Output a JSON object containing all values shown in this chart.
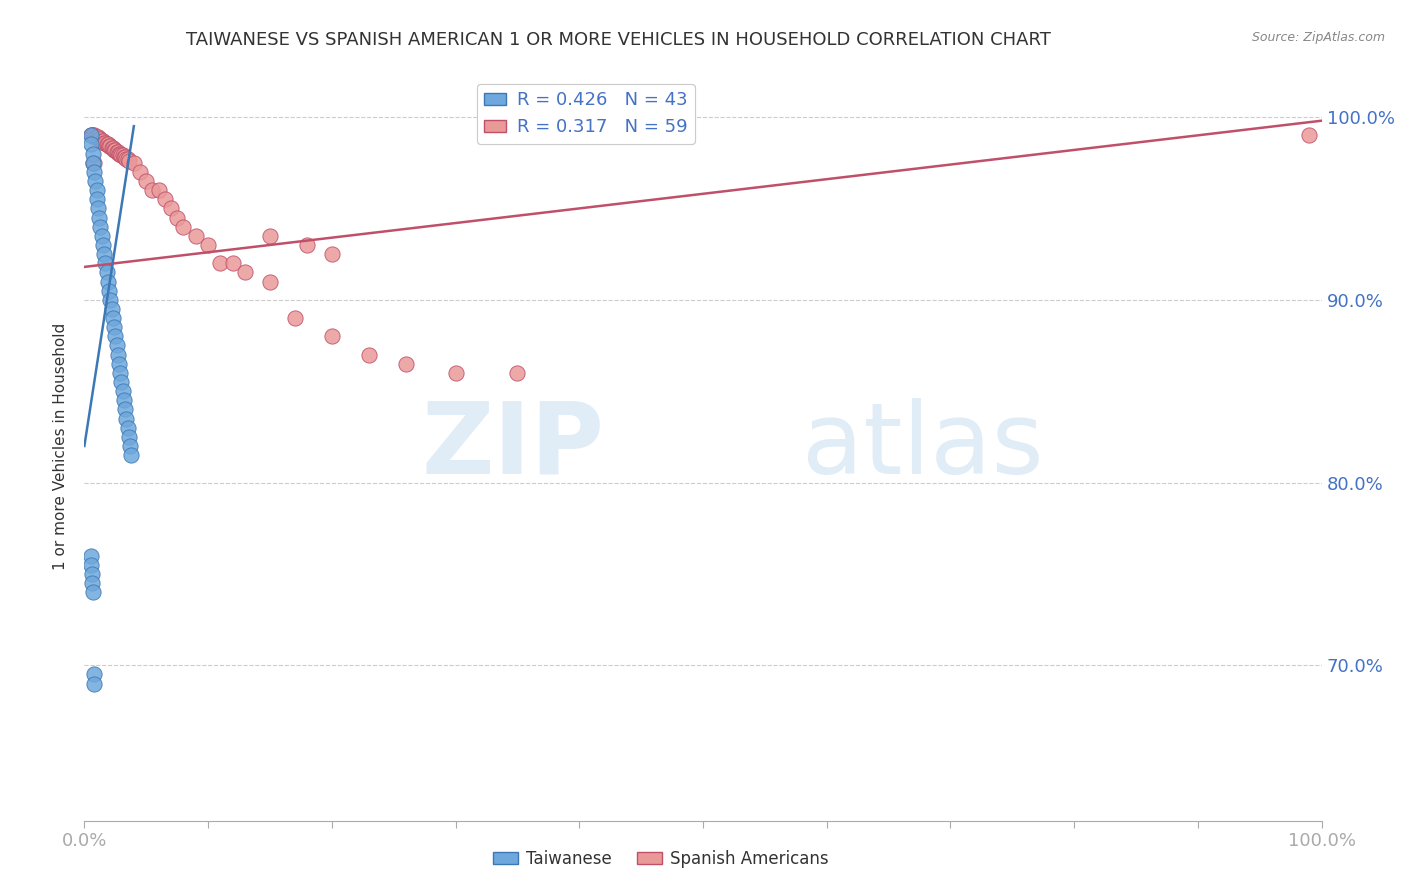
{
  "title": "TAIWANESE VS SPANISH AMERICAN 1 OR MORE VEHICLES IN HOUSEHOLD CORRELATION CHART",
  "source": "Source: ZipAtlas.com",
  "ylabel": "1 or more Vehicles in Household",
  "xlim": [
    0.0,
    1.0
  ],
  "ylim": [
    0.615,
    1.025
  ],
  "yticks": [
    0.7,
    0.8,
    0.9,
    1.0
  ],
  "ytick_labels": [
    "70.0%",
    "80.0%",
    "90.0%",
    "100.0%"
  ],
  "taiwanese_R": 0.426,
  "taiwanese_N": 43,
  "spanish_R": 0.317,
  "spanish_N": 59,
  "taiwanese_color": "#6fa8dc",
  "spanish_color": "#ea9999",
  "trendline_taiwanese_color": "#3c78b5",
  "trendline_spanish_color": "#c0506a",
  "taiwanese_x": [
    0.005,
    0.005,
    0.007,
    0.007,
    0.008,
    0.009,
    0.01,
    0.01,
    0.011,
    0.012,
    0.013,
    0.014,
    0.015,
    0.016,
    0.017,
    0.018,
    0.019,
    0.02,
    0.021,
    0.022,
    0.023,
    0.024,
    0.025,
    0.026,
    0.027,
    0.028,
    0.029,
    0.03,
    0.031,
    0.032,
    0.033,
    0.034,
    0.035,
    0.036,
    0.037,
    0.038,
    0.005,
    0.005,
    0.006,
    0.006,
    0.007,
    0.008,
    0.008
  ],
  "taiwanese_y": [
    0.99,
    0.985,
    0.98,
    0.975,
    0.97,
    0.965,
    0.96,
    0.955,
    0.95,
    0.945,
    0.94,
    0.935,
    0.93,
    0.925,
    0.92,
    0.915,
    0.91,
    0.905,
    0.9,
    0.895,
    0.89,
    0.885,
    0.88,
    0.875,
    0.87,
    0.865,
    0.86,
    0.855,
    0.85,
    0.845,
    0.84,
    0.835,
    0.83,
    0.825,
    0.82,
    0.815,
    0.76,
    0.755,
    0.75,
    0.745,
    0.74,
    0.695,
    0.69
  ],
  "spanish_x": [
    0.005,
    0.006,
    0.007,
    0.008,
    0.009,
    0.01,
    0.011,
    0.012,
    0.013,
    0.014,
    0.015,
    0.016,
    0.017,
    0.018,
    0.019,
    0.02,
    0.021,
    0.022,
    0.023,
    0.024,
    0.025,
    0.026,
    0.027,
    0.028,
    0.029,
    0.03,
    0.031,
    0.032,
    0.033,
    0.034,
    0.035,
    0.036,
    0.04,
    0.045,
    0.05,
    0.055,
    0.06,
    0.065,
    0.07,
    0.075,
    0.08,
    0.09,
    0.1,
    0.11,
    0.12,
    0.13,
    0.15,
    0.17,
    0.2,
    0.23,
    0.26,
    0.3,
    0.35,
    0.007,
    0.008,
    0.15,
    0.18,
    0.2,
    0.99
  ],
  "spanish_y": [
    0.99,
    0.99,
    0.99,
    0.99,
    0.989,
    0.989,
    0.989,
    0.988,
    0.988,
    0.987,
    0.987,
    0.986,
    0.986,
    0.985,
    0.985,
    0.984,
    0.984,
    0.983,
    0.983,
    0.982,
    0.982,
    0.981,
    0.981,
    0.98,
    0.98,
    0.979,
    0.979,
    0.978,
    0.978,
    0.977,
    0.977,
    0.976,
    0.975,
    0.97,
    0.965,
    0.96,
    0.96,
    0.955,
    0.95,
    0.945,
    0.94,
    0.935,
    0.93,
    0.92,
    0.92,
    0.915,
    0.91,
    0.89,
    0.88,
    0.87,
    0.865,
    0.86,
    0.86,
    0.975,
    0.975,
    0.935,
    0.93,
    0.925,
    0.99
  ],
  "watermark_zip": "ZIP",
  "watermark_atlas": "atlas",
  "background_color": "#ffffff",
  "grid_color": "#cccccc",
  "title_fontsize": 13,
  "axis_label_color": "#4472c4",
  "legend_fontsize": 13,
  "marker_size": 10
}
